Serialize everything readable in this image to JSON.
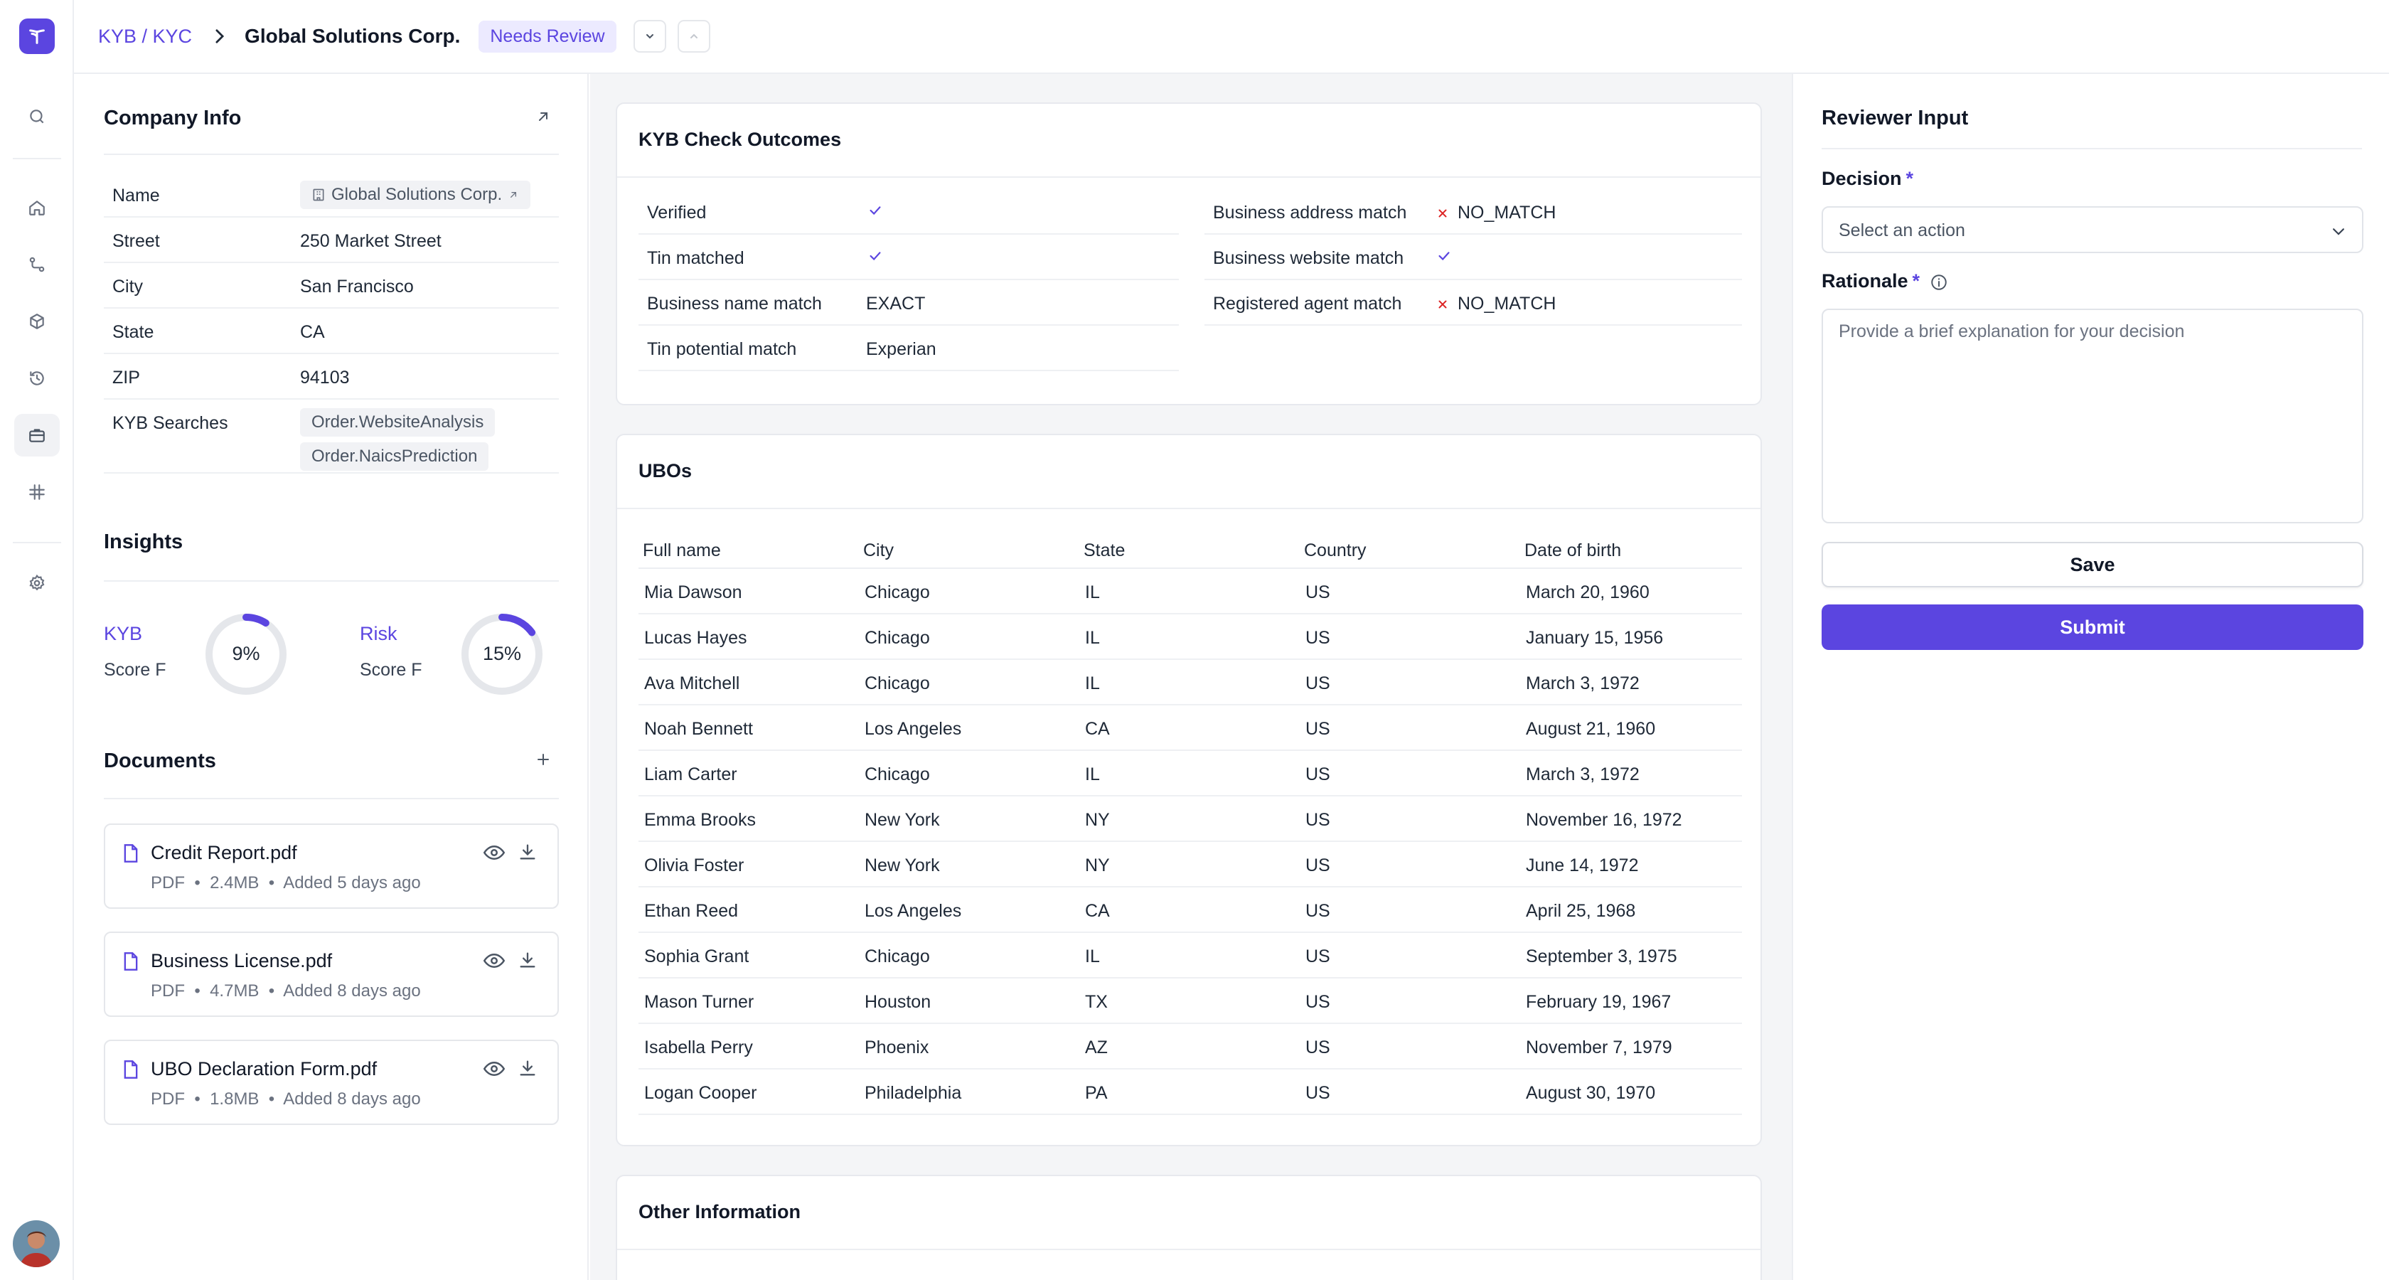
{
  "header": {
    "breadcrumb_link": "KYB / KYC",
    "title": "Global Solutions Corp.",
    "status": "Needs Review"
  },
  "nav": {
    "items": [
      "search-icon",
      "home-icon",
      "workflow-icon",
      "box-icon",
      "history-icon",
      "briefcase-icon",
      "hash-grid-icon",
      "settings-icon"
    ],
    "active": "briefcase-icon"
  },
  "company_info": {
    "title": "Company Info",
    "rows": [
      {
        "label": "Name",
        "value": "Global Solutions Corp."
      },
      {
        "label": "Street",
        "value": "250 Market Street"
      },
      {
        "label": "City",
        "value": "San Francisco"
      },
      {
        "label": "State",
        "value": "CA"
      },
      {
        "label": "ZIP",
        "value": "94103"
      },
      {
        "label": "KYB Searches",
        "values": [
          "Order.WebsiteAnalysis",
          "Order.NaicsPrediction"
        ]
      }
    ]
  },
  "insights": {
    "title": "Insights",
    "items": [
      {
        "label": "KYB",
        "sub": "Score F",
        "value": "9%",
        "fraction": 0.09
      },
      {
        "label": "Risk",
        "sub": "Score F",
        "value": "15%",
        "fraction": 0.15
      }
    ],
    "accent": "#5b45e0"
  },
  "documents": {
    "title": "Documents",
    "items": [
      {
        "name": "Credit Report.pdf",
        "type": "PDF",
        "size": "2.4MB",
        "added": "Added 5 days ago"
      },
      {
        "name": "Business License.pdf",
        "type": "PDF",
        "size": "4.7MB",
        "added": "Added 8 days ago"
      },
      {
        "name": "UBO Declaration Form.pdf",
        "type": "PDF",
        "size": "1.8MB",
        "added": "Added 8 days ago"
      }
    ]
  },
  "kyb_check": {
    "title": "KYB Check Outcomes",
    "left": [
      {
        "label": "Verified",
        "value": "",
        "status": "check"
      },
      {
        "label": "Tin matched",
        "value": "",
        "status": "check"
      },
      {
        "label": "Business name match",
        "value": "EXACT",
        "status": "text"
      },
      {
        "label": "Tin potential match",
        "value": "Experian",
        "status": "text"
      }
    ],
    "right": [
      {
        "label": "Business address match",
        "value": "NO_MATCH",
        "status": "cross"
      },
      {
        "label": "Business website match",
        "value": "",
        "status": "check"
      },
      {
        "label": "Registered agent match",
        "value": "NO_MATCH",
        "status": "cross"
      }
    ]
  },
  "ubos": {
    "title": "UBOs",
    "columns": [
      "Full name",
      "City",
      "State",
      "Country",
      "Date of birth"
    ],
    "rows": [
      [
        "Mia Dawson",
        "Chicago",
        "IL",
        "US",
        "March 20, 1960"
      ],
      [
        "Lucas Hayes",
        "Chicago",
        "IL",
        "US",
        "January 15, 1956"
      ],
      [
        "Ava Mitchell",
        "Chicago",
        "IL",
        "US",
        "March 3, 1972"
      ],
      [
        "Noah Bennett",
        "Los Angeles",
        "CA",
        "US",
        "August 21, 1960"
      ],
      [
        "Liam Carter",
        "Chicago",
        "IL",
        "US",
        "March 3, 1972"
      ],
      [
        "Emma Brooks",
        "New York",
        "NY",
        "US",
        "November 16, 1972"
      ],
      [
        "Olivia Foster",
        "New York",
        "NY",
        "US",
        "June 14, 1972"
      ],
      [
        "Ethan Reed",
        "Los Angeles",
        "CA",
        "US",
        "April 25, 1968"
      ],
      [
        "Sophia Grant",
        "Chicago",
        "IL",
        "US",
        "September 3, 1975"
      ],
      [
        "Mason Turner",
        "Houston",
        "TX",
        "US",
        "February 19, 1967"
      ],
      [
        "Isabella Perry",
        "Phoenix",
        "AZ",
        "US",
        "November 7, 1979"
      ],
      [
        "Logan Cooper",
        "Philadelphia",
        "PA",
        "US",
        "August 30, 1970"
      ]
    ]
  },
  "other_info": {
    "title": "Other Information"
  },
  "reviewer": {
    "title": "Reviewer Input",
    "decision_label": "Decision",
    "decision_placeholder": "Select an action",
    "rationale_label": "Rationale",
    "rationale_placeholder": "Provide a brief explanation for your decision",
    "save_label": "Save",
    "submit_label": "Submit",
    "required_mark": "*"
  }
}
